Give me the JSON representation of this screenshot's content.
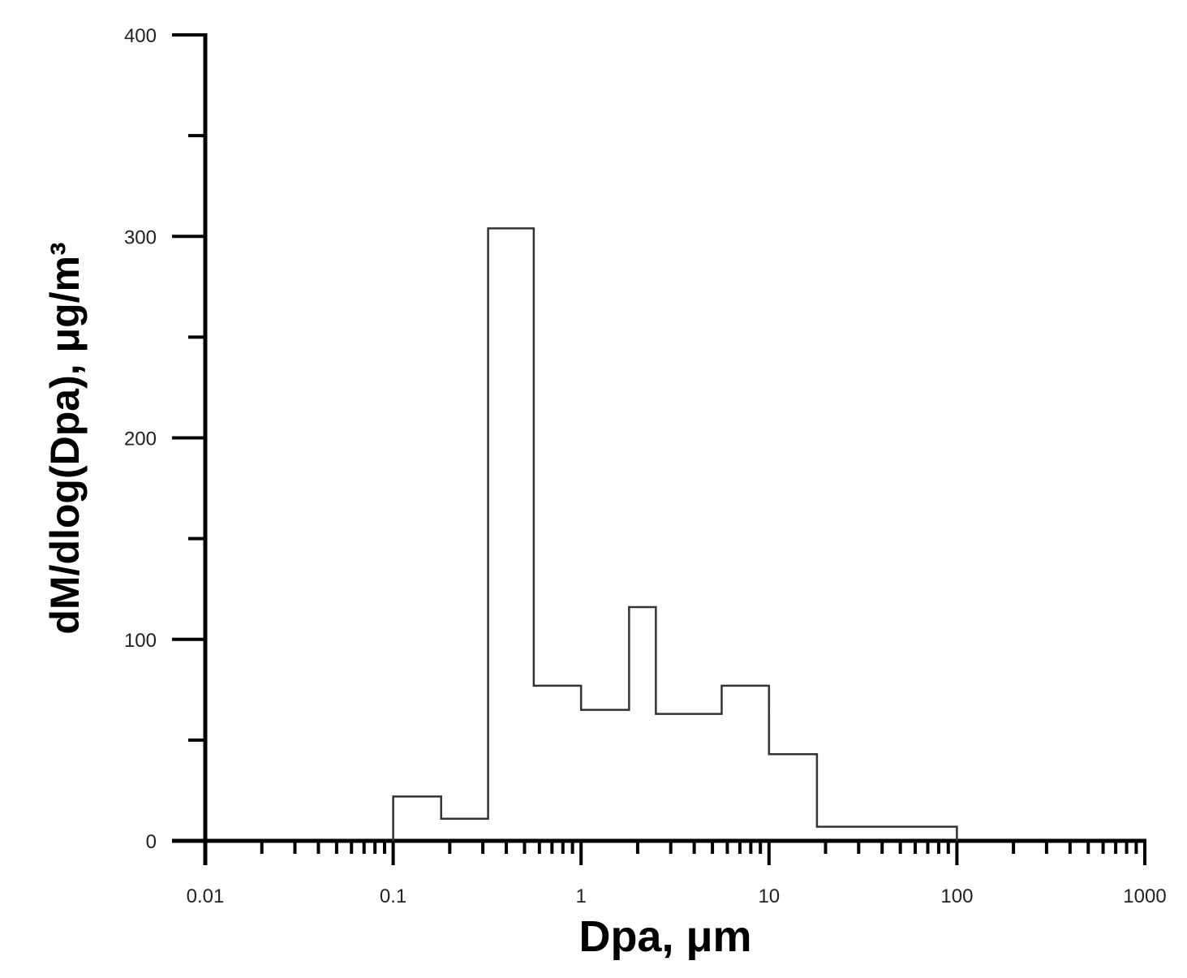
{
  "chart_data": {
    "type": "step",
    "xlabel": "Dpa, μm",
    "ylabel": "dM/dlog(Dpa), μg/m³",
    "xscale": "log",
    "xlim": [
      0.01,
      1000
    ],
    "ylim": [
      0,
      400
    ],
    "x_ticks": [
      "0.01",
      "0.1",
      "1",
      "10",
      "100",
      "1000"
    ],
    "y_ticks": [
      "0",
      "100",
      "200",
      "300",
      "400"
    ],
    "grid": false,
    "bins": [
      {
        "x0": 0.1,
        "x1": 0.18,
        "value": 22
      },
      {
        "x0": 0.18,
        "x1": 0.32,
        "value": 11
      },
      {
        "x0": 0.32,
        "x1": 0.56,
        "value": 304
      },
      {
        "x0": 0.56,
        "x1": 1.0,
        "value": 77
      },
      {
        "x0": 1.0,
        "x1": 1.8,
        "value": 65
      },
      {
        "x0": 1.8,
        "x1": 2.5,
        "value": 116
      },
      {
        "x0": 2.5,
        "x1": 5.6,
        "value": 63
      },
      {
        "x0": 5.6,
        "x1": 10,
        "value": 77
      },
      {
        "x0": 10,
        "x1": 18,
        "value": 43
      },
      {
        "x0": 18,
        "x1": 100,
        "value": 7
      }
    ],
    "colors": {
      "axis": "#000000",
      "line": "#333333",
      "text": "#222222"
    }
  }
}
